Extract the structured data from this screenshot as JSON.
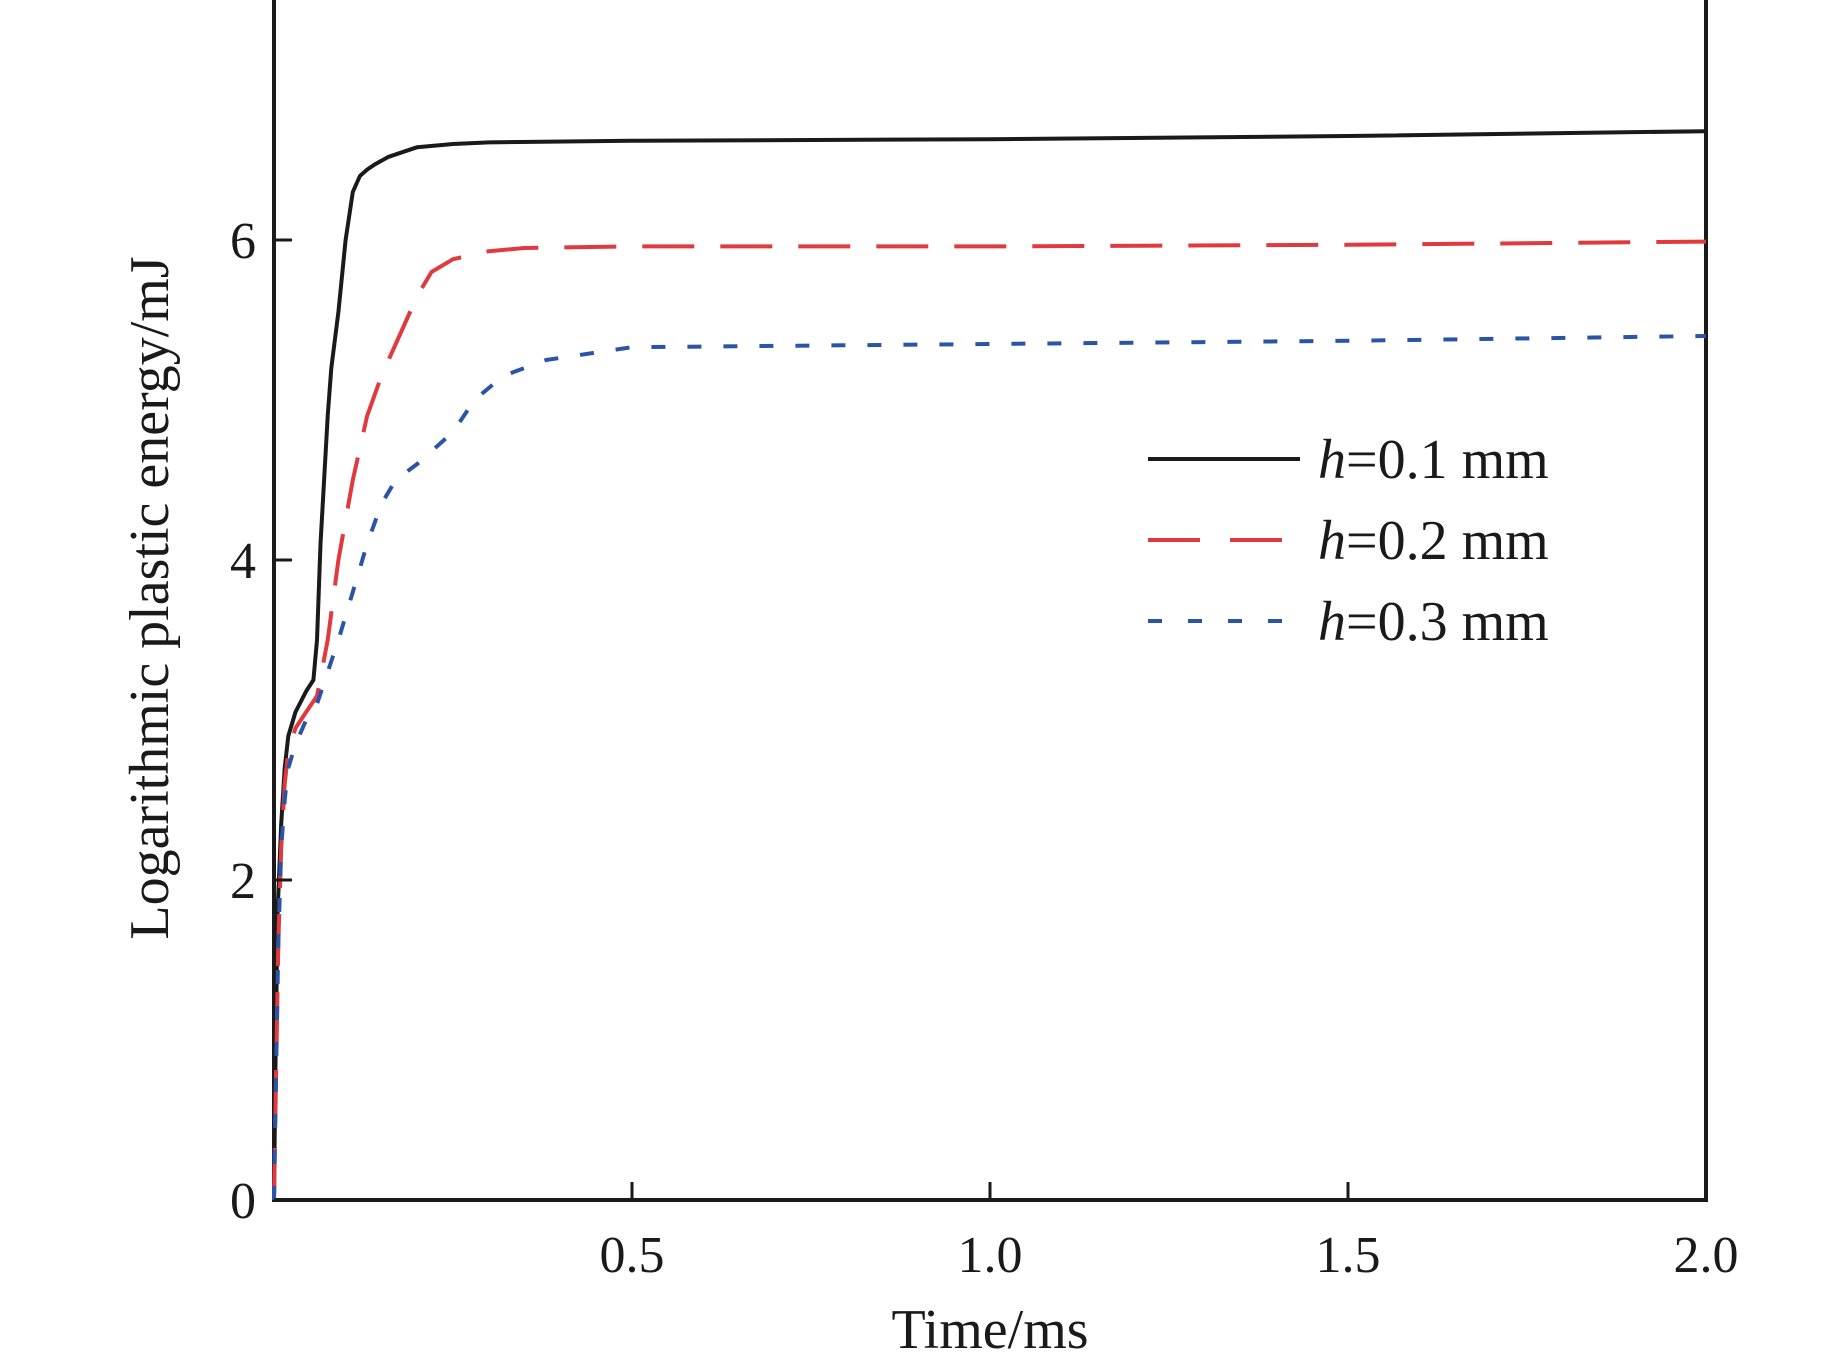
{
  "chart_data": {
    "type": "line",
    "title": "",
    "xlabel": "Time/ms",
    "ylabel": "Logarithmic plastic energy/mJ",
    "xlim": [
      0,
      2.0
    ],
    "ylim": [
      0,
      7.5
    ],
    "xticks": [
      0.5,
      1.0,
      1.5,
      2.0
    ],
    "xtick_labels": [
      "0.5",
      "1.0",
      "1.5",
      "2.0"
    ],
    "yticks": [
      0,
      2,
      4,
      6
    ],
    "ytick_labels": [
      "0",
      "2",
      "4",
      "6"
    ],
    "grid": false,
    "legend_position": "center-right",
    "series": [
      {
        "name_prefix": "h",
        "name_suffix": "=0.1 mm",
        "color": "#1a1a1a",
        "style": "solid",
        "x": [
          0,
          0.002,
          0.005,
          0.01,
          0.015,
          0.02,
          0.03,
          0.045,
          0.055,
          0.06,
          0.065,
          0.07,
          0.075,
          0.08,
          0.09,
          0.1,
          0.11,
          0.12,
          0.13,
          0.14,
          0.16,
          0.2,
          0.25,
          0.3,
          0.5,
          1.0,
          1.5,
          2.0
        ],
        "y": [
          0,
          0.8,
          1.8,
          2.35,
          2.7,
          2.9,
          3.05,
          3.18,
          3.25,
          3.5,
          4.1,
          4.5,
          4.9,
          5.2,
          5.55,
          6.0,
          6.3,
          6.4,
          6.44,
          6.47,
          6.52,
          6.58,
          6.6,
          6.61,
          6.62,
          6.63,
          6.65,
          6.68
        ]
      },
      {
        "name_prefix": "h",
        "name_suffix": "=0.2 mm",
        "color": "#e03a3e",
        "style": "dashed",
        "x": [
          0,
          0.003,
          0.006,
          0.01,
          0.015,
          0.02,
          0.03,
          0.045,
          0.06,
          0.075,
          0.09,
          0.11,
          0.13,
          0.15,
          0.18,
          0.2,
          0.22,
          0.25,
          0.3,
          0.35,
          0.5,
          1.0,
          1.5,
          2.0
        ],
        "y": [
          0,
          0.8,
          1.6,
          2.2,
          2.6,
          2.8,
          2.95,
          3.05,
          3.15,
          3.5,
          4.0,
          4.5,
          4.9,
          5.15,
          5.45,
          5.65,
          5.8,
          5.88,
          5.93,
          5.95,
          5.96,
          5.96,
          5.97,
          5.99
        ]
      },
      {
        "name_prefix": "h",
        "name_suffix": "=0.3 mm",
        "color": "#2b54a6",
        "style": "dotted",
        "x": [
          0,
          0.003,
          0.006,
          0.01,
          0.015,
          0.02,
          0.03,
          0.045,
          0.06,
          0.075,
          0.09,
          0.11,
          0.13,
          0.15,
          0.17,
          0.2,
          0.25,
          0.28,
          0.32,
          0.38,
          0.5,
          1.0,
          1.5,
          2.0
        ],
        "y": [
          0,
          0.8,
          1.6,
          2.2,
          2.5,
          2.7,
          2.85,
          3.0,
          3.1,
          3.3,
          3.5,
          3.8,
          4.1,
          4.35,
          4.5,
          4.6,
          4.8,
          5.0,
          5.15,
          5.25,
          5.33,
          5.35,
          5.37,
          5.4
        ]
      }
    ]
  }
}
